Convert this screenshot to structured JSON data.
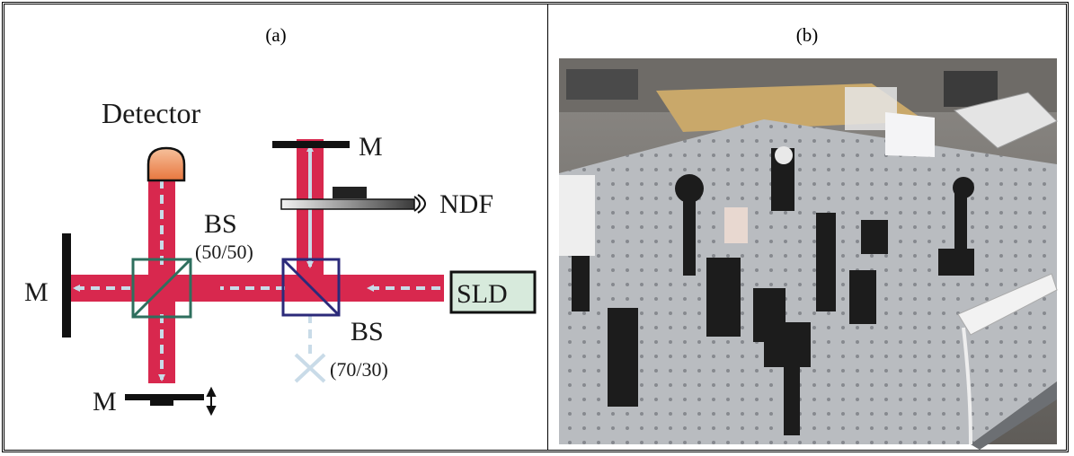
{
  "figure": {
    "panel_a": {
      "caption": "(a)",
      "labels": {
        "detector": "Detector",
        "bs1_name": "BS",
        "bs1_ratio": "(50/50)",
        "bs2_name": "BS",
        "bs2_ratio": "(70/30)",
        "mirror_left": "M",
        "mirror_top": "M",
        "mirror_bottom": "M",
        "ndf": "NDF",
        "source": "SLD"
      }
    },
    "panel_b": {
      "caption": "(b)"
    }
  },
  "colors": {
    "beam": "#d8284e",
    "beam_dash": "#c9dbe8",
    "bs_50": "#2e6f5e",
    "bs_70": "#2b2a7a",
    "detector_top": "#f6c19c",
    "detector_bottom": "#e8763e",
    "sld_fill": "#d7eadc",
    "optical_table": "#b9bcc0",
    "lab_desk": "#c9a86a"
  }
}
